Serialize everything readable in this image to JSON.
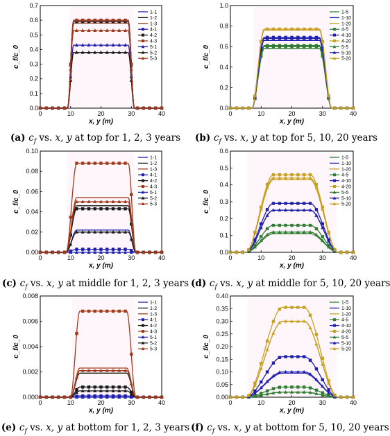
{
  "chart_data": [
    {
      "panel": "a",
      "type": "line",
      "caption": {
        "tag": "(a)",
        "text": "c_f vs. x, y at top for 1, 2, 3 years"
      },
      "xlabel": "x, y (m)",
      "ylabel": "c_f/c_0",
      "xlim": [
        0,
        40
      ],
      "ylim": [
        0,
        0.7
      ],
      "xticks": [
        "0",
        "10",
        "20",
        "30",
        "40"
      ],
      "yticks": [
        "0.0",
        "0.1",
        "0.2",
        "0.3",
        "0.4",
        "0.5",
        "0.6",
        "0.7"
      ],
      "legend_position": "right",
      "series": [
        {
          "name": "1-1",
          "color": "#1f1fae",
          "marker": "none",
          "plateau": 0.6
        },
        {
          "name": "1-2",
          "color": "#1a1a1a",
          "marker": "none",
          "plateau": 0.59
        },
        {
          "name": "1-3",
          "color": "#a03a1a",
          "marker": "none",
          "plateau": 0.58
        },
        {
          "name": "4-1",
          "color": "#1f1fae",
          "marker": "square",
          "plateau": 0.6
        },
        {
          "name": "4-2",
          "color": "#1a1a1a",
          "marker": "square",
          "plateau": 0.59
        },
        {
          "name": "4-3",
          "color": "#a03a1a",
          "marker": "square",
          "plateau": 0.6
        },
        {
          "name": "5-1",
          "color": "#1f1fae",
          "marker": "triangle",
          "plateau": 0.43
        },
        {
          "name": "5-2",
          "color": "#1a1a1a",
          "marker": "triangle",
          "plateau": 0.38
        },
        {
          "name": "5-3",
          "color": "#a03a1a",
          "marker": "triangle",
          "plateau": 0.53
        }
      ],
      "profile": {
        "x_rise_start": 9,
        "x_rise_end": 11,
        "x_fall_start": 29,
        "x_fall_end": 31
      }
    },
    {
      "panel": "b",
      "type": "line",
      "caption": {
        "tag": "(b)",
        "text": "c_f vs. x, y at top for 5, 10, 20 years"
      },
      "xlabel": "x, y (m)",
      "ylabel": "c_f/c_0",
      "xlim": [
        0,
        40
      ],
      "ylim": [
        0,
        1.0
      ],
      "xticks": [
        "0",
        "10",
        "20",
        "30",
        "40"
      ],
      "yticks": [
        "0.0",
        "0.2",
        "0.4",
        "0.6",
        "0.8",
        "1.0"
      ],
      "legend_position": "right",
      "series": [
        {
          "name": "1-5",
          "color": "#2e7d32",
          "marker": "none",
          "plateau": 0.58
        },
        {
          "name": "1-10",
          "color": "#1f1fae",
          "marker": "none",
          "plateau": 0.66
        },
        {
          "name": "1-20",
          "color": "#c8a020",
          "marker": "none",
          "plateau": 0.76
        },
        {
          "name": "4-5",
          "color": "#2e7d32",
          "marker": "square",
          "plateau": 0.61
        },
        {
          "name": "4-10",
          "color": "#1f1fae",
          "marker": "square",
          "plateau": 0.69
        },
        {
          "name": "4-20",
          "color": "#c8a020",
          "marker": "square",
          "plateau": 0.77
        },
        {
          "name": "5-5",
          "color": "#2e7d32",
          "marker": "triangle",
          "plateau": 0.6
        },
        {
          "name": "5-10",
          "color": "#1f1fae",
          "marker": "triangle",
          "plateau": 0.68
        },
        {
          "name": "5-20",
          "color": "#c8a020",
          "marker": "triangle",
          "plateau": 0.77
        }
      ],
      "profile": {
        "x_rise_start": 7,
        "x_rise_end": 11,
        "x_fall_start": 29,
        "x_fall_end": 33
      }
    },
    {
      "panel": "c",
      "type": "line",
      "caption": {
        "tag": "(c)",
        "text": "c_f vs. x, y at middle for 1, 2, 3 years"
      },
      "xlabel": "x, y (m)",
      "ylabel": "c_f/c_0",
      "xlim": [
        0,
        40
      ],
      "ylim": [
        0,
        0.1
      ],
      "xticks": [
        "0",
        "10",
        "20",
        "30",
        "40"
      ],
      "yticks": [
        "0.00",
        "0.02",
        "0.04",
        "0.06",
        "0.08",
        "0.10"
      ],
      "legend_position": "right",
      "series": [
        {
          "name": "1-1",
          "color": "#1f1fae",
          "marker": "none",
          "plateau": 0.022
        },
        {
          "name": "1-2",
          "color": "#1a1a1a",
          "marker": "none",
          "plateau": 0.046
        },
        {
          "name": "1-3",
          "color": "#a03a1a",
          "marker": "none",
          "plateau": 0.054
        },
        {
          "name": "4-1",
          "color": "#1f1fae",
          "marker": "square",
          "plateau": 0.003
        },
        {
          "name": "4-2",
          "color": "#1a1a1a",
          "marker": "square",
          "plateau": 0.043
        },
        {
          "name": "4-3",
          "color": "#a03a1a",
          "marker": "square",
          "plateau": 0.088
        },
        {
          "name": "5-1",
          "color": "#1f1fae",
          "marker": "triangle",
          "plateau": 0.0
        },
        {
          "name": "5-2",
          "color": "#1a1a1a",
          "marker": "triangle",
          "plateau": 0.02
        },
        {
          "name": "5-3",
          "color": "#a03a1a",
          "marker": "triangle",
          "plateau": 0.05
        }
      ],
      "profile": {
        "x_rise_start": 8.5,
        "x_rise_end": 12,
        "x_fall_start": 29,
        "x_fall_end": 31.5
      }
    },
    {
      "panel": "d",
      "type": "line",
      "caption": {
        "tag": "(d)",
        "text": "c_f vs. x, y at middle for 5, 10, 20 years"
      },
      "xlabel": "x, y (m)",
      "ylabel": "c_f/c_0",
      "xlim": [
        0,
        40
      ],
      "ylim": [
        0,
        0.6
      ],
      "xticks": [
        "0",
        "10",
        "20",
        "30",
        "40"
      ],
      "yticks": [
        "0.0",
        "0.1",
        "0.2",
        "0.3",
        "0.4",
        "0.5",
        "0.6"
      ],
      "legend_position": "right",
      "series": [
        {
          "name": "1-5",
          "color": "#2e7d32",
          "marker": "none",
          "plateau": 0.11
        },
        {
          "name": "1-10",
          "color": "#1f1fae",
          "marker": "none",
          "plateau": 0.25
        },
        {
          "name": "1-20",
          "color": "#c8a020",
          "marker": "none",
          "plateau": 0.43
        },
        {
          "name": "4-5",
          "color": "#2e7d32",
          "marker": "square",
          "plateau": 0.16
        },
        {
          "name": "4-10",
          "color": "#1f1fae",
          "marker": "square",
          "plateau": 0.29
        },
        {
          "name": "4-20",
          "color": "#c8a020",
          "marker": "square",
          "plateau": 0.46
        },
        {
          "name": "5-5",
          "color": "#2e7d32",
          "marker": "triangle",
          "plateau": 0.12
        },
        {
          "name": "5-10",
          "color": "#1f1fae",
          "marker": "triangle",
          "plateau": 0.25
        },
        {
          "name": "5-20",
          "color": "#c8a020",
          "marker": "triangle",
          "plateau": 0.44
        }
      ],
      "profile": {
        "x_rise_start": 5,
        "x_rise_end": 14,
        "x_fall_start": 26,
        "x_fall_end": 35
      }
    },
    {
      "panel": "e",
      "type": "line",
      "caption": {
        "tag": "(e)",
        "text": "c_f vs. x, y at bottom for 1, 2, 3 years"
      },
      "xlabel": "x, y (m)",
      "ylabel": "c_f/c_0",
      "xlim": [
        0,
        40
      ],
      "ylim": [
        0,
        0.008
      ],
      "xticks": [
        "0",
        "10",
        "20",
        "30",
        "40"
      ],
      "yticks": [
        "0.000",
        "0.002",
        "0.004",
        "0.006",
        "0.008"
      ],
      "legend_position": "right",
      "series": [
        {
          "name": "1-1",
          "color": "#1f1fae",
          "marker": "none",
          "plateau": 0.0008
        },
        {
          "name": "1-2",
          "color": "#1a1a1a",
          "marker": "none",
          "plateau": 0.0019
        },
        {
          "name": "1-3",
          "color": "#a03a1a",
          "marker": "none",
          "plateau": 0.0023
        },
        {
          "name": "4-1",
          "color": "#1f1fae",
          "marker": "square",
          "plateau": 0.0001
        },
        {
          "name": "4-2",
          "color": "#1a1a1a",
          "marker": "square",
          "plateau": 0.0008
        },
        {
          "name": "4-3",
          "color": "#a03a1a",
          "marker": "square",
          "plateau": 0.0068
        },
        {
          "name": "5-1",
          "color": "#1f1fae",
          "marker": "triangle",
          "plateau": 0.0
        },
        {
          "name": "5-2",
          "color": "#1a1a1a",
          "marker": "triangle",
          "plateau": 0.0005
        },
        {
          "name": "5-3",
          "color": "#a03a1a",
          "marker": "triangle",
          "plateau": 0.0021
        }
      ],
      "profile": {
        "x_rise_start": 10,
        "x_rise_end": 13,
        "x_fall_start": 28.5,
        "x_fall_end": 31.5
      }
    },
    {
      "panel": "f",
      "type": "line",
      "caption": {
        "tag": "(f)",
        "text": "c_f vs. x, y at bottom for 5, 10, 20 years"
      },
      "xlabel": "x, y (m)",
      "ylabel": "c_f/c_0",
      "xlim": [
        0,
        40
      ],
      "ylim": [
        0,
        0.4
      ],
      "xticks": [
        "0",
        "10",
        "20",
        "30",
        "40"
      ],
      "yticks": [
        "0.00",
        "0.05",
        "0.10",
        "0.15",
        "0.20",
        "0.25",
        "0.30",
        "0.35",
        "0.40"
      ],
      "legend_position": "right",
      "series": [
        {
          "name": "1-5",
          "color": "#2e7d32",
          "marker": "none",
          "plateau": 0.02
        },
        {
          "name": "1-10",
          "color": "#1f1fae",
          "marker": "none",
          "plateau": 0.095
        },
        {
          "name": "1-20",
          "color": "#c8a020",
          "marker": "none",
          "plateau": 0.3
        },
        {
          "name": "4-5",
          "color": "#2e7d32",
          "marker": "square",
          "plateau": 0.04
        },
        {
          "name": "4-10",
          "color": "#1f1fae",
          "marker": "square",
          "plateau": 0.16
        },
        {
          "name": "4-20",
          "color": "#c8a020",
          "marker": "square",
          "plateau": 0.355
        },
        {
          "name": "5-5",
          "color": "#2e7d32",
          "marker": "triangle",
          "plateau": 0.02
        },
        {
          "name": "5-10",
          "color": "#1f1fae",
          "marker": "triangle",
          "plateau": 0.1
        },
        {
          "name": "5-20",
          "color": "#c8a020",
          "marker": "triangle",
          "plateau": 0.3
        }
      ],
      "profile": {
        "x_rise_start": 5,
        "x_rise_end": 17,
        "x_fall_start": 24,
        "x_fall_end": 35
      }
    }
  ]
}
